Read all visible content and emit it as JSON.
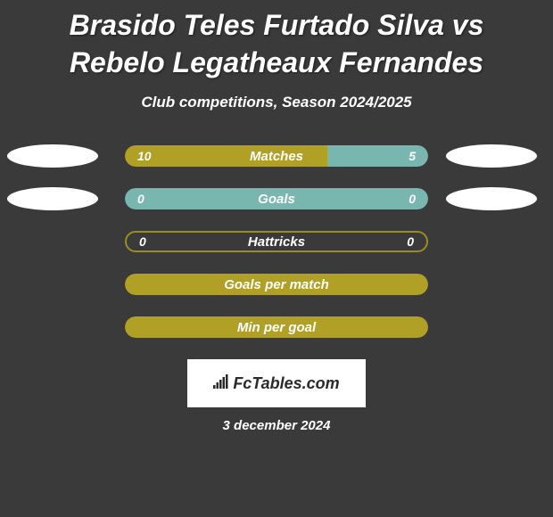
{
  "title": "Brasido Teles Furtado Silva vs Rebelo Legatheaux Fernandes",
  "subtitle": "Club competitions, Season 2024/2025",
  "date": "3 december 2024",
  "logo": "FcTables.com",
  "colors": {
    "background": "#3a3a3a",
    "olive": "#b0a025",
    "teal": "#7ab6b0",
    "white": "#ffffff",
    "gray": "#6a6a6a",
    "bar_border": "#9a8d20"
  },
  "rows": [
    {
      "label": "Matches",
      "left_val": "10",
      "right_val": "5",
      "left_pct": 66.7,
      "right_pct": 33.3,
      "left_color": "#b0a025",
      "right_color": "#7ab6b0",
      "ellipse_left": "#ffffff",
      "ellipse_right": "#ffffff",
      "show_vals": true
    },
    {
      "label": "Goals",
      "left_val": "0",
      "right_val": "0",
      "left_pct": 0,
      "right_pct": 100,
      "left_color": "#b0a025",
      "right_color": "#7ab6b0",
      "ellipse_left": "#ffffff",
      "ellipse_right": "#ffffff",
      "show_vals": true,
      "full_fill": "#7ab6b0"
    },
    {
      "label": "Hattricks",
      "left_val": "0",
      "right_val": "0",
      "left_pct": 0,
      "right_pct": 0,
      "left_color": "#b0a025",
      "right_color": "#7ab6b0",
      "ellipse_left": null,
      "ellipse_right": null,
      "show_vals": true,
      "outline_only": true
    },
    {
      "label": "Goals per match",
      "left_val": "",
      "right_val": "",
      "left_pct": 0,
      "right_pct": 0,
      "ellipse_left": null,
      "ellipse_right": null,
      "show_vals": false,
      "full_fill": "#b0a025"
    },
    {
      "label": "Min per goal",
      "left_val": "",
      "right_val": "",
      "left_pct": 0,
      "right_pct": 0,
      "ellipse_left": null,
      "ellipse_right": null,
      "show_vals": false,
      "full_fill": "#b0a025"
    }
  ]
}
